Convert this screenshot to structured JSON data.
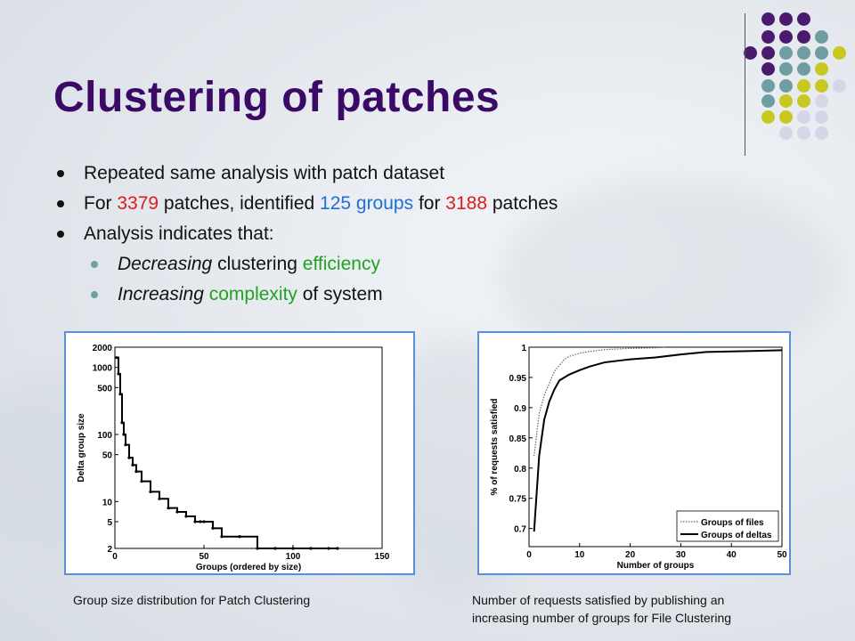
{
  "slide": {
    "title": "Clustering of patches",
    "bullets": {
      "b1": "Repeated same analysis with patch dataset",
      "b2": {
        "p1": "For ",
        "n1": "3379",
        "p2": " patches, identified ",
        "n2": "125 groups",
        "p3": " for ",
        "n3": "3188",
        "p4": " patches"
      },
      "b3": "Analysis indicates that:",
      "s1": {
        "a": "Decreasing",
        "b": " clustering ",
        "c": "efficiency"
      },
      "s2": {
        "a": "Increasing",
        "b": " complexity",
        "c": " of system"
      }
    },
    "colors": {
      "title": "#3a0a66",
      "highlight_red": "#e01b1b",
      "highlight_blue": "#1e6fd6",
      "highlight_green": "#22a122",
      "frame": "#5b8fd6"
    },
    "captions": {
      "left": "Group size distribution for Patch Clustering",
      "right_line1": "Number of requests satisfied by publishing an",
      "right_line2": "increasing number of groups for File Clustering"
    }
  },
  "chart_data": [
    {
      "type": "line",
      "xlabel": "Groups (ordered by size)",
      "ylabel": "Delta group size",
      "xlim": [
        0,
        150
      ],
      "ylim": [
        2,
        2000
      ],
      "yscale": "log",
      "xticks": [
        0,
        50,
        100,
        150
      ],
      "yticks": [
        2,
        5,
        10,
        50,
        100,
        500,
        1000,
        2000
      ],
      "series": [
        {
          "x": [
            1,
            2,
            3,
            4,
            5,
            6,
            8,
            10,
            12,
            15,
            20,
            25,
            30,
            35,
            40,
            45,
            48,
            50,
            55,
            60,
            70,
            80,
            90,
            100,
            110,
            120,
            125
          ],
          "y": [
            1400,
            800,
            400,
            150,
            100,
            70,
            45,
            35,
            28,
            20,
            14,
            11,
            8,
            7,
            6,
            5,
            5,
            5,
            4,
            3,
            3,
            2,
            2,
            2,
            2,
            2,
            2
          ]
        }
      ]
    },
    {
      "type": "line",
      "xlabel": "Number of groups",
      "ylabel": "% of requests satisfied",
      "xlim": [
        0,
        50
      ],
      "ylim": [
        0.67,
        1.0
      ],
      "xticks": [
        0,
        10,
        20,
        30,
        40,
        50
      ],
      "yticks": [
        0.7,
        0.75,
        0.8,
        0.85,
        0.9,
        0.95,
        1
      ],
      "legend": "bottom-right",
      "series": [
        {
          "name": "Groups of files",
          "style": "dotted",
          "x": [
            1,
            2,
            3,
            4,
            5,
            6,
            7,
            8,
            10,
            12,
            15,
            20,
            25,
            27
          ],
          "y": [
            0.82,
            0.89,
            0.92,
            0.94,
            0.96,
            0.97,
            0.98,
            0.985,
            0.99,
            0.993,
            0.996,
            0.998,
            0.999,
            1.0
          ]
        },
        {
          "name": "Groups of deltas",
          "style": "solid",
          "x": [
            1,
            2,
            3,
            4,
            5,
            6,
            8,
            10,
            12,
            15,
            18,
            20,
            25,
            30,
            35,
            40,
            45,
            50
          ],
          "y": [
            0.695,
            0.82,
            0.88,
            0.91,
            0.93,
            0.945,
            0.955,
            0.962,
            0.968,
            0.975,
            0.978,
            0.98,
            0.983,
            0.988,
            0.992,
            0.993,
            0.994,
            0.995
          ]
        }
      ]
    }
  ]
}
